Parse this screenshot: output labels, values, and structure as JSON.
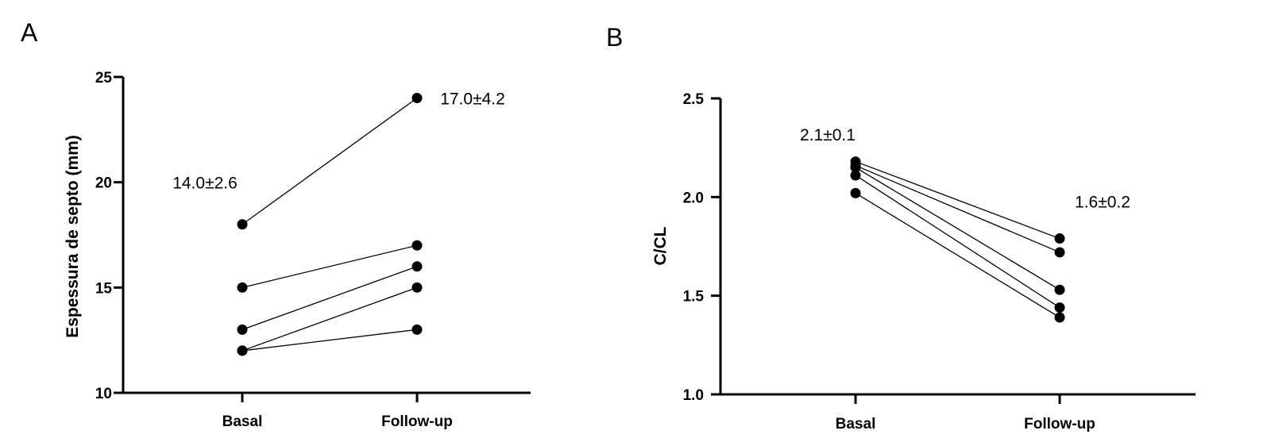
{
  "figure": {
    "panels": [
      {
        "letter": "A",
        "ylabel": "Espessura de septo (mm)"
      },
      {
        "letter": "B",
        "ylabel": "C/CL"
      }
    ]
  },
  "chart_data": [
    {
      "type": "line",
      "panel": "A",
      "title": "",
      "xlabel": "",
      "ylabel": "Espessura de septo (mm)",
      "categories": [
        "Basal",
        "Follow-up"
      ],
      "ylim": [
        10,
        25
      ],
      "yticks": [
        10,
        15,
        20,
        25
      ],
      "ytick_labels": [
        "10",
        "15",
        "20",
        "25"
      ],
      "grid": false,
      "series": [
        {
          "values": [
            18,
            24
          ]
        },
        {
          "values": [
            15,
            17
          ]
        },
        {
          "values": [
            13,
            16
          ]
        },
        {
          "values": [
            12,
            15
          ]
        },
        {
          "values": [
            12,
            13
          ]
        }
      ],
      "annotations": [
        {
          "category": "Basal",
          "y": 20.0,
          "text": "14.0±2.6"
        },
        {
          "category": "Follow-up",
          "y": 24.0,
          "text": "17.0±4.2"
        }
      ]
    },
    {
      "type": "line",
      "panel": "B",
      "title": "",
      "xlabel": "",
      "ylabel": "C/CL",
      "categories": [
        "Basal",
        "Follow-up"
      ],
      "ylim": [
        1.0,
        2.5
      ],
      "yticks": [
        1.0,
        1.5,
        2.0,
        2.5
      ],
      "ytick_labels": [
        "1.0",
        "1.5",
        "2.0",
        "2.5"
      ],
      "grid": false,
      "series": [
        {
          "values": [
            2.18,
            1.79
          ]
        },
        {
          "values": [
            2.16,
            1.72
          ]
        },
        {
          "values": [
            2.15,
            1.53
          ]
        },
        {
          "values": [
            2.11,
            1.44
          ]
        },
        {
          "values": [
            2.02,
            1.39
          ]
        }
      ],
      "annotations": [
        {
          "category": "Basal",
          "y": 2.32,
          "text": "2.1±0.1"
        },
        {
          "category": "Follow-up",
          "y": 1.98,
          "text": "1.6±0.2"
        }
      ]
    }
  ]
}
